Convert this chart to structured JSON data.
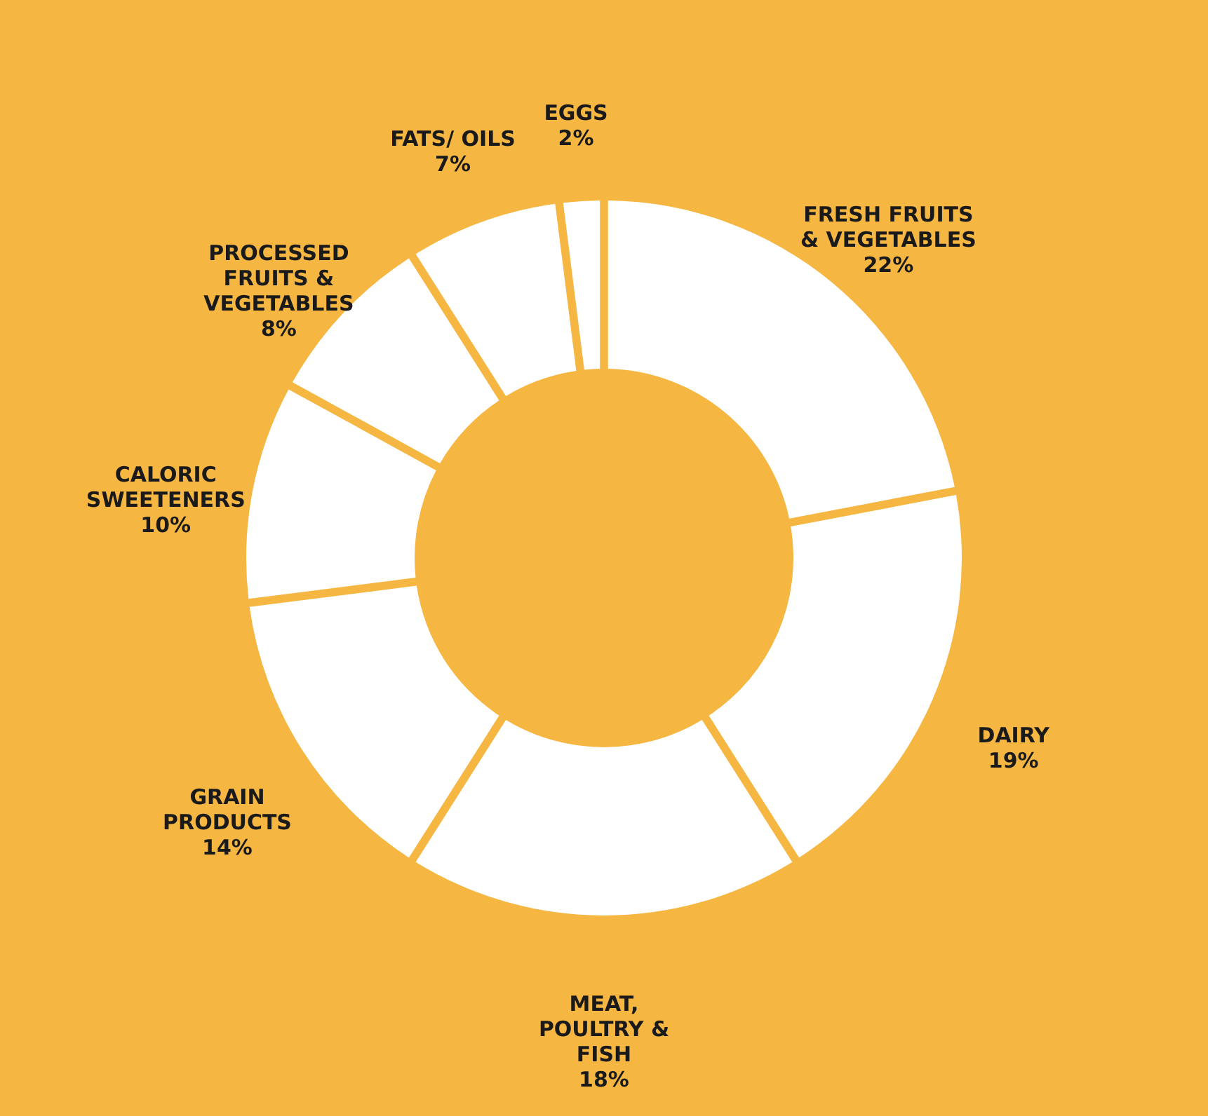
{
  "chart_data": {
    "type": "donut",
    "categories": [
      "FRESH FRUITS & VEGETABLES",
      "DAIRY",
      "MEAT, POULTRY & FISH",
      "GRAIN PRODUCTS",
      "CALORIC SWEETENERS",
      "PROCESSED FRUITS & VEGETABLES",
      "FATS/ OILS",
      "EGGS"
    ],
    "values": [
      22,
      19,
      18,
      14,
      10,
      8,
      7,
      2
    ],
    "value_labels": [
      "22%",
      "19%",
      "18%",
      "14%",
      "10%",
      "8%",
      "7%",
      "2%"
    ],
    "colors": [
      "#ffffff",
      "#ffffff",
      "#ffffff",
      "#ffffff",
      "#ffffff",
      "#ffffff",
      "#ffffff",
      "#ffffff"
    ]
  }
}
